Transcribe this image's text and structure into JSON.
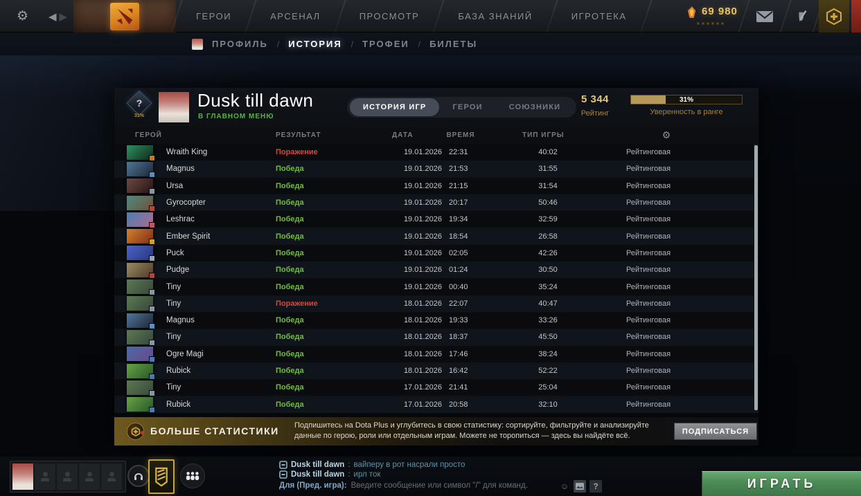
{
  "topbar": {
    "nav": [
      "ГЕРОИ",
      "АРСЕНАЛ",
      "ПРОСМОТР",
      "БАЗА ЗНАНИЙ",
      "ИГРОТЕКА"
    ],
    "currency_value": "69 980",
    "currency_color": "#e9c464"
  },
  "subnav": {
    "items": [
      "ПРОФИЛЬ",
      "ИСТОРИЯ",
      "ТРОФЕИ",
      "БИЛЕТЫ"
    ],
    "active": "ИСТОРИЯ"
  },
  "profile": {
    "name": "Dusk till dawn",
    "status": "В ГЛАВНОМ МЕНЮ",
    "status_color": "#59b347",
    "medal": {
      "glyph": "?",
      "pct": "31%"
    },
    "tabs": [
      "ИСТОРИЯ ИГР",
      "ГЕРОИ",
      "СОЮЗНИКИ"
    ],
    "active_tab": "ИСТОРИЯ ИГР",
    "rating": {
      "value": "5 344",
      "label": "Рейтинг"
    },
    "confidence": {
      "percent": 31,
      "percent_label": "31%",
      "label": "Уверенность в ранге",
      "fill_color": "#b6985a"
    }
  },
  "table": {
    "headers": [
      "ГЕРОЙ",
      "РЕЗУЛЬТАТ",
      "ДАТА",
      "ВРЕМЯ",
      "ТИП ИГРЫ"
    ],
    "result_colors": {
      "win": "#6fbe3e",
      "loss": "#d6483b"
    },
    "rows": [
      {
        "hero": "Wraith King",
        "result": "Поражение",
        "win": false,
        "date": "19.01.2026",
        "time": "22:31",
        "duration": "40:02",
        "type": "Рейтинговая",
        "colors": [
          "#2f8f60",
          "#0e2a1c"
        ],
        "badge": "#c27b2a"
      },
      {
        "hero": "Magnus",
        "result": "Победа",
        "win": true,
        "date": "19.01.2026",
        "time": "21:53",
        "duration": "31:55",
        "type": "Рейтинговая",
        "colors": [
          "#51769b",
          "#1b2633"
        ],
        "badge": "#5a8fc0"
      },
      {
        "hero": "Ursa",
        "result": "Победа",
        "win": true,
        "date": "19.01.2026",
        "time": "21:15",
        "duration": "31:54",
        "type": "Рейтинговая",
        "colors": [
          "#6b4a43",
          "#241313"
        ],
        "badge": "#8a97a3"
      },
      {
        "hero": "Gyrocopter",
        "result": "Победа",
        "win": true,
        "date": "19.01.2026",
        "time": "20:17",
        "duration": "50:46",
        "type": "Рейтинговая",
        "colors": [
          "#4e8a7e",
          "#70503a"
        ],
        "badge": "#b04a38"
      },
      {
        "hero": "Leshrac",
        "result": "Победа",
        "win": true,
        "date": "19.01.2026",
        "time": "19:34",
        "duration": "32:59",
        "type": "Рейтинговая",
        "colors": [
          "#4a7fb5",
          "#b06a8e"
        ],
        "badge": "#c05a6a"
      },
      {
        "hero": "Ember Spirit",
        "result": "Победа",
        "win": true,
        "date": "19.01.2026",
        "time": "18:54",
        "duration": "26:58",
        "type": "Рейтинговая",
        "colors": [
          "#d3802f",
          "#7c2d18"
        ],
        "badge": "#caa23c"
      },
      {
        "hero": "Puck",
        "result": "Победа",
        "win": true,
        "date": "19.01.2026",
        "time": "02:05",
        "duration": "42:26",
        "type": "Рейтинговая",
        "colors": [
          "#4a63c8",
          "#27367e"
        ],
        "badge": "#9aa4ae"
      },
      {
        "hero": "Pudge",
        "result": "Победа",
        "win": true,
        "date": "19.01.2026",
        "time": "01:24",
        "duration": "30:50",
        "type": "Рейтинговая",
        "colors": [
          "#9c8a63",
          "#4d3a27"
        ],
        "badge": "#b5453a"
      },
      {
        "hero": "Tiny",
        "result": "Победа",
        "win": true,
        "date": "19.01.2026",
        "time": "00:40",
        "duration": "35:24",
        "type": "Рейтинговая",
        "colors": [
          "#5d7a52",
          "#37463b"
        ],
        "badge": "#8a97a3"
      },
      {
        "hero": "Tiny",
        "result": "Поражение",
        "win": false,
        "date": "18.01.2026",
        "time": "22:07",
        "duration": "40:47",
        "type": "Рейтинговая",
        "colors": [
          "#5d7a52",
          "#37463b"
        ],
        "badge": "#8a97a3"
      },
      {
        "hero": "Magnus",
        "result": "Победа",
        "win": true,
        "date": "18.01.2026",
        "time": "19:33",
        "duration": "33:26",
        "type": "Рейтинговая",
        "colors": [
          "#51769b",
          "#1b2633"
        ],
        "badge": "#5a8fc0"
      },
      {
        "hero": "Tiny",
        "result": "Победа",
        "win": true,
        "date": "18.01.2026",
        "time": "18:37",
        "duration": "45:50",
        "type": "Рейтинговая",
        "colors": [
          "#5d7a52",
          "#37463b"
        ],
        "badge": "#8a97a3"
      },
      {
        "hero": "Ogre Magi",
        "result": "Победа",
        "win": true,
        "date": "18.01.2026",
        "time": "17:46",
        "duration": "38:24",
        "type": "Рейтинговая",
        "colors": [
          "#4a6aa8",
          "#6a4a8a"
        ],
        "badge": "#4a7ab5"
      },
      {
        "hero": "Rubick",
        "result": "Победа",
        "win": true,
        "date": "18.01.2026",
        "time": "16:42",
        "duration": "52:22",
        "type": "Рейтинговая",
        "colors": [
          "#63a447",
          "#2b5626"
        ],
        "badge": "#4a7ab5"
      },
      {
        "hero": "Tiny",
        "result": "Победа",
        "win": true,
        "date": "17.01.2026",
        "time": "21:41",
        "duration": "25:04",
        "type": "Рейтинговая",
        "colors": [
          "#5d7a52",
          "#37463b"
        ],
        "badge": "#8a97a3"
      },
      {
        "hero": "Rubick",
        "result": "Победа",
        "win": true,
        "date": "17.01.2026",
        "time": "20:58",
        "duration": "32:10",
        "type": "Рейтинговая",
        "colors": [
          "#63a447",
          "#2b5626"
        ],
        "badge": "#4a7ab5"
      }
    ]
  },
  "banner": {
    "title": "БОЛЬШЕ СТАТИСТИКИ",
    "description": "Подпишитесь на Dota Plus и углубитесь в свою статистику: сортируйте, фильтруйте и анализируйте данные по герою, роли или отдельным играм. Можете не торопиться — здесь вы найдёте всё.",
    "button": "ПОДПИСАТЬСЯ"
  },
  "footer": {
    "chat": [
      {
        "name": "Dusk till dawn",
        "sep": ":",
        "message": "вайперу в рот насрали просто"
      },
      {
        "name": "Dusk till dawn",
        "sep": ":",
        "message": "ирл ток"
      }
    ],
    "input": {
      "target": "Для (Пред. игра):",
      "placeholder": "Введите сообщение или символ \"/\" для команд."
    },
    "help_label": "?",
    "play_label": "ИГРАТЬ"
  }
}
